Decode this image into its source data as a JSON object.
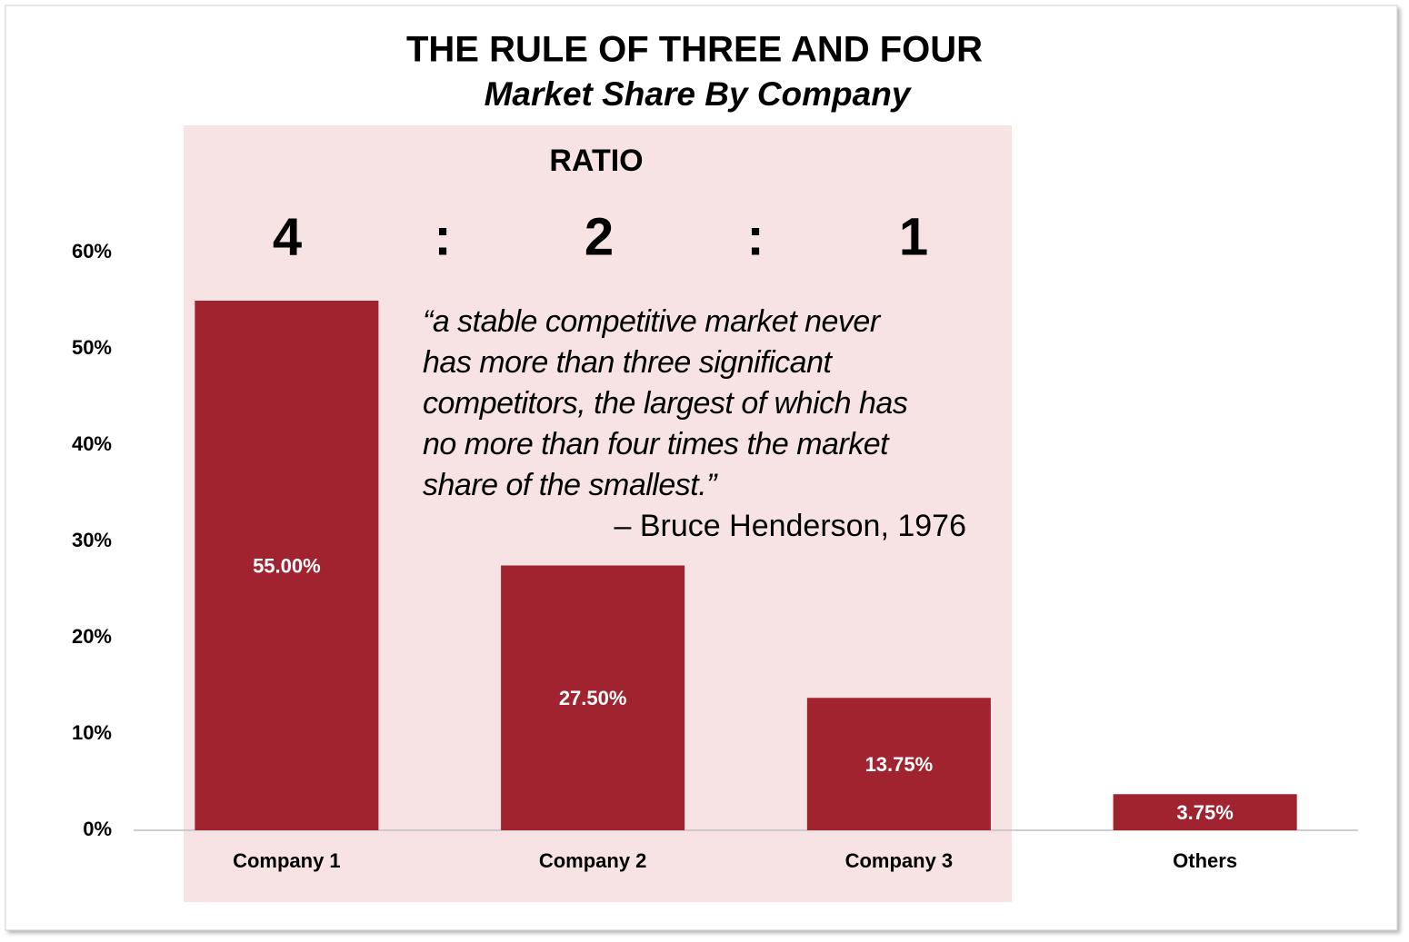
{
  "chart_data": {
    "type": "bar",
    "title": "THE RULE OF THREE AND FOUR",
    "subtitle": "Market Share By Company",
    "categories": [
      "Company 1",
      "Company 2",
      "Company 3",
      "Others"
    ],
    "values": [
      55,
      27.5,
      13.75,
      3.75
    ],
    "value_labels": [
      "55.00%",
      "27.50%",
      "13.75%",
      "3.75%"
    ],
    "color": "#a0232f",
    "ylim": [
      0,
      60
    ],
    "yticks": [
      {
        "value": 0,
        "label": "0%"
      },
      {
        "value": 10,
        "label": "10%"
      },
      {
        "value": 20,
        "label": "20%"
      },
      {
        "value": 30,
        "label": "30%"
      },
      {
        "value": 40,
        "label": "40%"
      },
      {
        "value": 50,
        "label": "50%"
      },
      {
        "value": 60,
        "label": "60%"
      }
    ],
    "grid": false,
    "annotations": {
      "ratio_heading": "RATIO",
      "ratio": [
        "4",
        ":",
        "2",
        ":",
        "1"
      ],
      "quote": [
        "“a stable competitive market never",
        "has more than three significant",
        "competitors, the largest of which has",
        "no more than four times the market",
        "share of the smallest.”"
      ],
      "attribution": "– Bruce Henderson, 1976"
    }
  }
}
